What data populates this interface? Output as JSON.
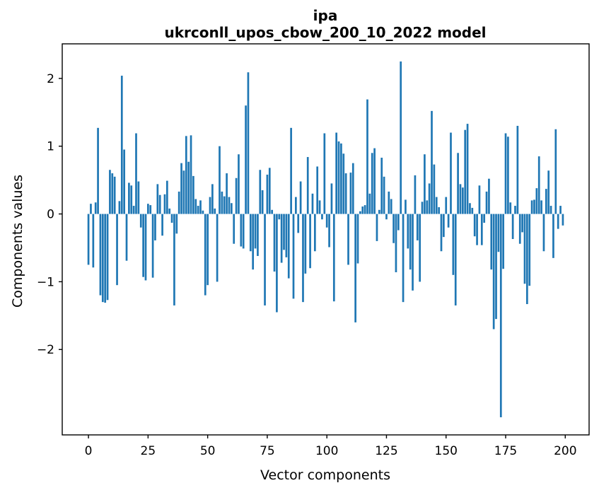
{
  "figure": {
    "title_line1": "ipa",
    "title_line2": "ukrconll_upos_cbow_200_10_2022 model",
    "xlabel": "Vector components",
    "ylabel": "Components values",
    "x_tick_labels": [
      "0",
      "25",
      "50",
      "75",
      "100",
      "125",
      "150",
      "175",
      "200"
    ],
    "y_tick_labels": [
      "2",
      "1",
      "0",
      "−1",
      "−2"
    ],
    "bar_color": "#1f77b4",
    "axis_color": "#000000"
  },
  "chart_data": {
    "type": "bar",
    "title": "ipa — ukrconll_upos_cbow_200_10_2022 model",
    "xlabel": "Vector components",
    "ylabel": "Components values",
    "legend": "none",
    "grid": false,
    "x_ticks": [
      0,
      25,
      50,
      75,
      100,
      125,
      150,
      175,
      200
    ],
    "y_ticks": [
      2,
      1,
      0,
      -1,
      -2
    ],
    "xlim": [
      -11,
      210
    ],
    "ylim": [
      -3.26,
      2.51
    ],
    "bar_width": 0.8,
    "n_components": 200,
    "values": [
      -0.75,
      0.15,
      -0.79,
      0.17,
      1.27,
      -1.2,
      -1.3,
      -1.31,
      -1.27,
      0.65,
      0.6,
      0.55,
      -1.05,
      0.19,
      2.04,
      0.95,
      -0.69,
      0.46,
      0.42,
      0.12,
      1.19,
      0.48,
      -0.2,
      -0.93,
      -0.98,
      0.15,
      0.13,
      -0.94,
      -0.39,
      0.44,
      0.28,
      -0.32,
      0.29,
      0.49,
      0.08,
      -0.13,
      -1.35,
      -0.29,
      0.33,
      0.75,
      0.64,
      1.15,
      0.77,
      1.16,
      0.56,
      0.22,
      0.12,
      0.2,
      0.05,
      -1.2,
      -1.05,
      0.25,
      0.44,
      0.08,
      -1.0,
      1.0,
      0.33,
      0.26,
      0.6,
      0.25,
      0.16,
      -0.44,
      0.53,
      0.88,
      -0.48,
      -0.51,
      1.6,
      2.09,
      -0.55,
      -0.82,
      -0.51,
      -0.62,
      0.65,
      0.35,
      -1.35,
      0.58,
      0.68,
      0.06,
      -0.85,
      -1.45,
      -0.08,
      -0.72,
      -0.53,
      -0.64,
      -0.95,
      1.27,
      -1.25,
      0.25,
      -0.28,
      0.48,
      -1.3,
      -0.88,
      0.84,
      -0.8,
      0.3,
      -0.55,
      0.7,
      0.2,
      -0.08,
      1.19,
      -0.2,
      -0.49,
      0.45,
      -1.29,
      1.2,
      1.07,
      1.04,
      0.89,
      0.6,
      -0.75,
      0.61,
      0.75,
      -1.6,
      -0.73,
      0.04,
      0.11,
      0.13,
      1.69,
      0.3,
      0.9,
      0.97,
      -0.4,
      0.06,
      0.83,
      0.55,
      -0.08,
      0.33,
      0.22,
      -0.43,
      -0.86,
      -0.24,
      2.25,
      -1.3,
      0.21,
      -0.51,
      -0.82,
      -1.13,
      0.57,
      -0.39,
      -1.0,
      0.18,
      0.88,
      0.2,
      0.45,
      1.52,
      0.73,
      0.25,
      0.1,
      -0.55,
      -0.34,
      0.25,
      -0.2,
      1.2,
      -0.9,
      -1.35,
      0.9,
      0.44,
      0.39,
      1.24,
      1.33,
      0.16,
      0.09,
      -0.33,
      -0.46,
      0.42,
      -0.46,
      -0.13,
      0.33,
      0.52,
      -0.82,
      -1.7,
      -1.55,
      -0.56,
      -3.0,
      -0.81,
      1.19,
      1.14,
      0.17,
      -0.37,
      0.12,
      1.3,
      -0.44,
      -0.27,
      -1.03,
      -1.33,
      -1.06,
      0.2,
      0.21,
      0.38,
      0.85,
      0.2,
      -0.55,
      0.37,
      0.64,
      0.12,
      -0.65,
      1.25,
      -0.22,
      0.12,
      -0.17
    ]
  }
}
